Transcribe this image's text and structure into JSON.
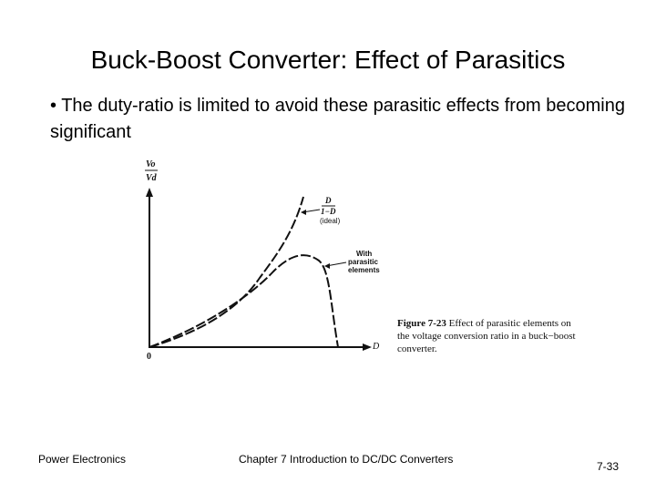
{
  "slide": {
    "title": "Buck-Boost Converter: Effect of Parasitics",
    "bullet": "• The duty-ratio is limited to avoid these parasitic effects from becoming significant"
  },
  "figure": {
    "y_label_top": "Vo",
    "y_label_bottom": "Vd",
    "x_label": "D",
    "origin_label": "0",
    "ideal_formula_numerator": "D",
    "ideal_formula_denominator": "1−D",
    "ideal_label": "(ideal)",
    "parasitic_label_lines": [
      "With",
      "parasitic",
      "elements"
    ],
    "caption_number": "Figure 7-23",
    "caption_text": "Effect of parasitic elements on the voltage conversion ratio in a buck−boost converter.",
    "colors": {
      "ink": "#111111"
    }
  },
  "footer": {
    "left": "Power Electronics",
    "center": "Chapter 7 Introduction to DC/DC Converters",
    "right": "7-33"
  }
}
